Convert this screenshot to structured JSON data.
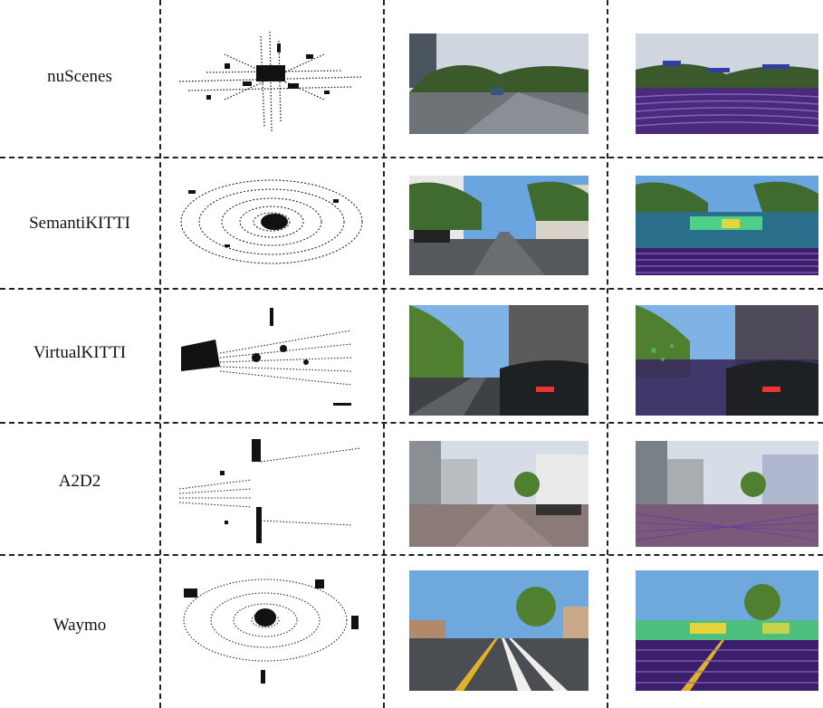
{
  "datasets": [
    {
      "name": "nuScenes"
    },
    {
      "name": "SemantiKITTI"
    },
    {
      "name": "VirtualKITTI"
    },
    {
      "name": "A2D2"
    },
    {
      "name": "Waymo"
    }
  ],
  "colors": {
    "grid_line": "#222222",
    "sky_blue": "#6aa5e0",
    "overcast": "#cfd6e0",
    "road": "#555a60",
    "tree": "#3f6b2e",
    "lidar_purple": "#3b1f6b",
    "lidar_green": "#4fd08a",
    "lidar_yellow": "#e6d53a"
  },
  "icons": {
    "point_cloud": "lidar-point-cloud-icon",
    "camera_image": "camera-image-icon",
    "projection": "lidar-projection-icon"
  }
}
